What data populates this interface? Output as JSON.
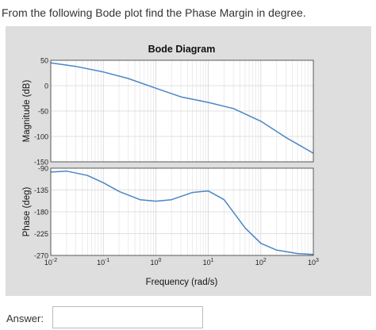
{
  "question": "From the following Bode plot find the Phase Margin in degree.",
  "answer": {
    "label": "Answer:",
    "value": ""
  },
  "chart_data": {
    "type": "line",
    "title": "Bode Diagram",
    "xlabel": "Frequency (rad/s)",
    "xscale": "log",
    "xlim": [
      0.01,
      1000
    ],
    "xticks": [
      {
        "value": 0.01,
        "base": "10",
        "exp": "-2"
      },
      {
        "value": 0.1,
        "base": "10",
        "exp": "-1"
      },
      {
        "value": 1,
        "base": "10",
        "exp": "0"
      },
      {
        "value": 10,
        "base": "10",
        "exp": "1"
      },
      {
        "value": 100,
        "base": "10",
        "exp": "2"
      },
      {
        "value": 1000,
        "base": "10",
        "exp": "3"
      }
    ],
    "line_color": "#4a86c5",
    "magnitude": {
      "ylabel": "Magnitude (dB)",
      "ylim": [
        -150,
        50
      ],
      "yticks": [
        "50",
        "0",
        "-50",
        "-100",
        "-150"
      ],
      "x": [
        0.01,
        0.03,
        0.1,
        0.3,
        1,
        3,
        10,
        30,
        100,
        300,
        1000
      ],
      "y": [
        45,
        38,
        27,
        14,
        -5,
        -22,
        -33,
        -45,
        -70,
        -102,
        -133
      ]
    },
    "phase": {
      "ylabel": "Phase (deg)",
      "ylim": [
        -270,
        -90
      ],
      "yticks": [
        "-90",
        "-135",
        "-180",
        "-225",
        "-270"
      ],
      "x": [
        0.01,
        0.02,
        0.05,
        0.1,
        0.2,
        0.5,
        1,
        2,
        5,
        10,
        20,
        50,
        100,
        200,
        500,
        1000
      ],
      "y": [
        -98,
        -96,
        -105,
        -120,
        -138,
        -155,
        -158,
        -155,
        -140,
        -137,
        -155,
        -213,
        -245,
        -259,
        -266,
        -268
      ]
    }
  }
}
